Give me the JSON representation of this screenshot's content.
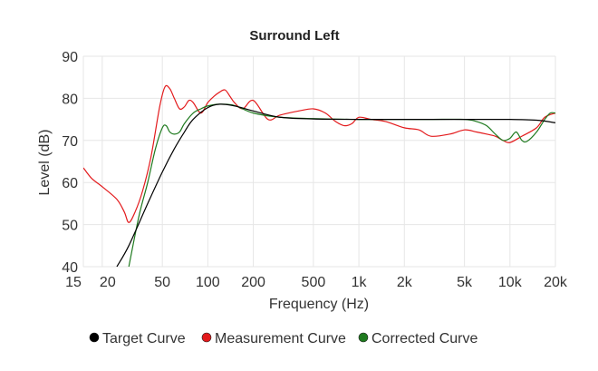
{
  "chart_data": {
    "type": "line",
    "title": "Surround Left",
    "xlabel": "Frequency (Hz)",
    "ylabel": "Level (dB)",
    "xscale": "log",
    "xlim": [
      15,
      20000
    ],
    "ylim": [
      40,
      90
    ],
    "grid": true,
    "legend_position": "bottom",
    "x_ticks": [
      {
        "value": 15,
        "label": "15"
      },
      {
        "value": 20,
        "label": "20"
      },
      {
        "value": 50,
        "label": "50"
      },
      {
        "value": 100,
        "label": "100"
      },
      {
        "value": 200,
        "label": "200"
      },
      {
        "value": 500,
        "label": "500"
      },
      {
        "value": 1000,
        "label": "1k"
      },
      {
        "value": 2000,
        "label": "2k"
      },
      {
        "value": 5000,
        "label": "5k"
      },
      {
        "value": 10000,
        "label": "10k"
      },
      {
        "value": 20000,
        "label": "20k"
      }
    ],
    "y_ticks": [
      40,
      50,
      60,
      70,
      80,
      90
    ],
    "series": [
      {
        "name": "Target Curve",
        "color": "#000000",
        "x": [
          25,
          30,
          40,
          50,
          60,
          70,
          80,
          100,
          120,
          150,
          200,
          300,
          500,
          1000,
          2000,
          5000,
          10000,
          15000,
          20000
        ],
        "y": [
          40,
          45,
          55,
          62.5,
          68,
          72,
          75,
          77.8,
          78.6,
          78.2,
          77,
          75.5,
          75.1,
          75,
          75,
          75,
          75,
          74.8,
          74.2
        ]
      },
      {
        "name": "Measurement Curve",
        "color": "#e31a1c",
        "x": [
          15,
          17,
          20,
          25,
          28,
          30,
          33,
          37,
          42,
          48,
          52,
          56,
          60,
          65,
          70,
          75,
          80,
          90,
          100,
          110,
          120,
          130,
          140,
          150,
          170,
          200,
          250,
          300,
          400,
          500,
          600,
          700,
          800,
          900,
          1000,
          1200,
          1500,
          2000,
          2500,
          3000,
          4000,
          5000,
          6000,
          7000,
          8000,
          9000,
          10000,
          12000,
          15000,
          17000,
          20000
        ],
        "y": [
          63.5,
          61,
          59,
          56,
          53,
          50.5,
          53,
          58,
          66,
          78,
          82.7,
          82.3,
          80,
          77.5,
          78,
          79.5,
          79,
          76.5,
          79,
          80.5,
          81.5,
          82,
          80.5,
          79,
          77.5,
          79.5,
          75,
          76,
          77,
          77.5,
          76.5,
          74.5,
          73.5,
          74,
          75.5,
          75,
          74.5,
          73,
          72.5,
          71,
          71.5,
          72.5,
          72,
          71.5,
          71,
          70,
          69.5,
          71,
          73,
          75.5,
          76.5
        ]
      },
      {
        "name": "Corrected Curve",
        "color": "#1f7a1f",
        "x": [
          30,
          35,
          40,
          45,
          50,
          53,
          56,
          60,
          65,
          70,
          80,
          90,
          100,
          120,
          150,
          200,
          300,
          500,
          1000,
          2000,
          3000,
          5000,
          6000,
          7000,
          8000,
          9000,
          10000,
          11000,
          12000,
          13000,
          15000,
          17000,
          18500,
          20000
        ],
        "y": [
          40,
          52,
          60,
          68,
          73,
          73.5,
          72,
          71.5,
          72,
          74,
          76.5,
          77.5,
          78.2,
          78.6,
          78.3,
          76.5,
          75.5,
          75.2,
          75,
          75,
          75,
          75,
          74.5,
          73.5,
          71.5,
          70,
          70.5,
          72,
          70,
          69.8,
          72,
          75,
          76.5,
          76.5
        ]
      }
    ]
  }
}
